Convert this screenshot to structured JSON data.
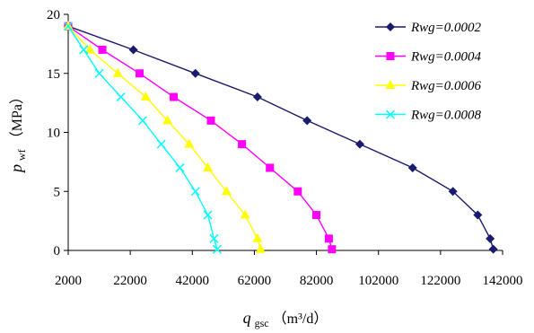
{
  "chart_data": {
    "type": "line",
    "xlabel": {
      "var": "q",
      "sub": "gsc",
      "unit": "（m³/d）"
    },
    "ylabel": {
      "var": "p",
      "sub": "wf",
      "unit": "（MPa）"
    },
    "xlim": [
      2000,
      142000
    ],
    "ylim": [
      0,
      20
    ],
    "xticks": [
      2000,
      22000,
      42000,
      62000,
      82000,
      102000,
      122000,
      142000
    ],
    "yticks": [
      0,
      5,
      10,
      15,
      20
    ],
    "grid": false,
    "legend_position": "top-right",
    "series": [
      {
        "name": "Rwg=0.0002",
        "color": "#1a1a6e",
        "marker": "diamond",
        "points": [
          [
            2000,
            19
          ],
          [
            23000,
            17
          ],
          [
            43000,
            15
          ],
          [
            63000,
            13
          ],
          [
            79000,
            11
          ],
          [
            96000,
            9
          ],
          [
            113000,
            7
          ],
          [
            126000,
            5
          ],
          [
            134000,
            3
          ],
          [
            138000,
            1
          ],
          [
            139000,
            0.1
          ]
        ]
      },
      {
        "name": "Rwg=0.0004",
        "color": "#ff00ff",
        "marker": "square",
        "points": [
          [
            2000,
            19
          ],
          [
            13000,
            17
          ],
          [
            25000,
            15
          ],
          [
            36000,
            13
          ],
          [
            48000,
            11
          ],
          [
            58000,
            9
          ],
          [
            67000,
            7
          ],
          [
            76000,
            5
          ],
          [
            82000,
            3
          ],
          [
            86000,
            1
          ],
          [
            87000,
            0.1
          ]
        ]
      },
      {
        "name": "Rwg=0.0006",
        "color": "#ffff00",
        "marker": "triangle",
        "points": [
          [
            2000,
            19
          ],
          [
            9000,
            17
          ],
          [
            18000,
            15
          ],
          [
            27000,
            13
          ],
          [
            34000,
            11
          ],
          [
            41000,
            9
          ],
          [
            47000,
            7
          ],
          [
            53000,
            5
          ],
          [
            59000,
            3
          ],
          [
            63000,
            1
          ],
          [
            64000,
            0.1
          ]
        ]
      },
      {
        "name": "Rwg=0.0008",
        "color": "#00ffff",
        "marker": "x",
        "points": [
          [
            2000,
            19
          ],
          [
            7000,
            17
          ],
          [
            12000,
            15
          ],
          [
            19000,
            13
          ],
          [
            26000,
            11
          ],
          [
            32000,
            9
          ],
          [
            38000,
            7
          ],
          [
            43000,
            5
          ],
          [
            47000,
            3
          ],
          [
            49000,
            1
          ],
          [
            50000,
            0.1
          ]
        ]
      }
    ]
  }
}
